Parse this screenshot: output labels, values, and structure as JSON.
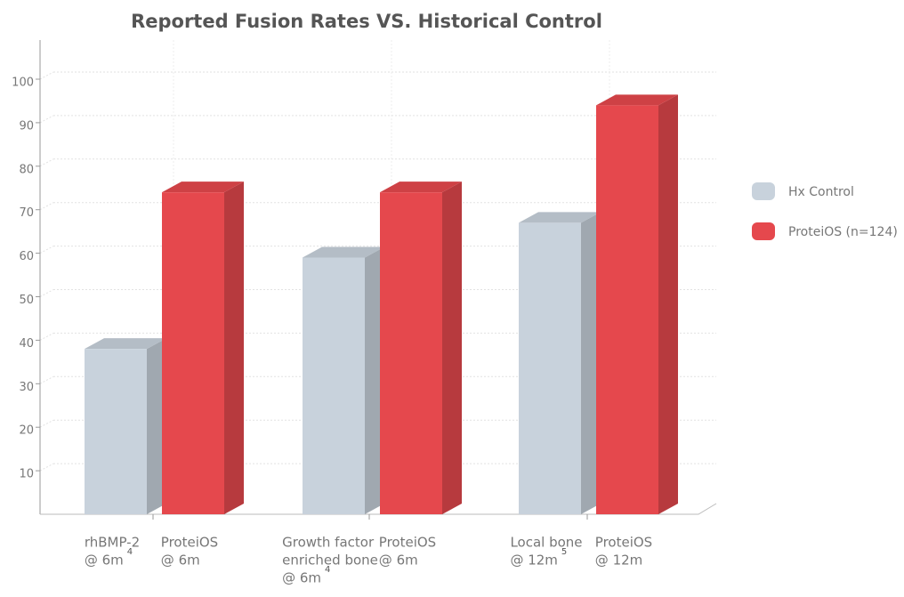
{
  "chart_data": {
    "type": "bar3d",
    "title": "Reported Fusion Rates VS. Historical Control",
    "series": [
      {
        "name": "Hx Control",
        "color": "#c8d2dc",
        "values": [
          38,
          59,
          67
        ],
        "labels": [
          [
            "rhBMP-2",
            "@ 6m"
          ],
          [
            "Growth factor",
            "enriched bone",
            "@ 6m"
          ],
          [
            "Local bone",
            "@ 12m"
          ]
        ],
        "label_notes": [
          "4",
          "4",
          "5"
        ]
      },
      {
        "name": "ProteiOS (n=124)",
        "color": "#e5484d",
        "values": [
          74,
          74,
          94
        ],
        "labels": [
          [
            "ProteiOS",
            "@ 6m"
          ],
          [
            "ProteiOS",
            "@ 6m"
          ],
          [
            "ProteiOS",
            "@ 12m"
          ]
        ]
      }
    ],
    "ylim": [
      0,
      109
    ],
    "yticks": [
      10,
      20,
      30,
      40,
      50,
      60,
      70,
      80,
      90,
      100
    ],
    "grid": true
  }
}
